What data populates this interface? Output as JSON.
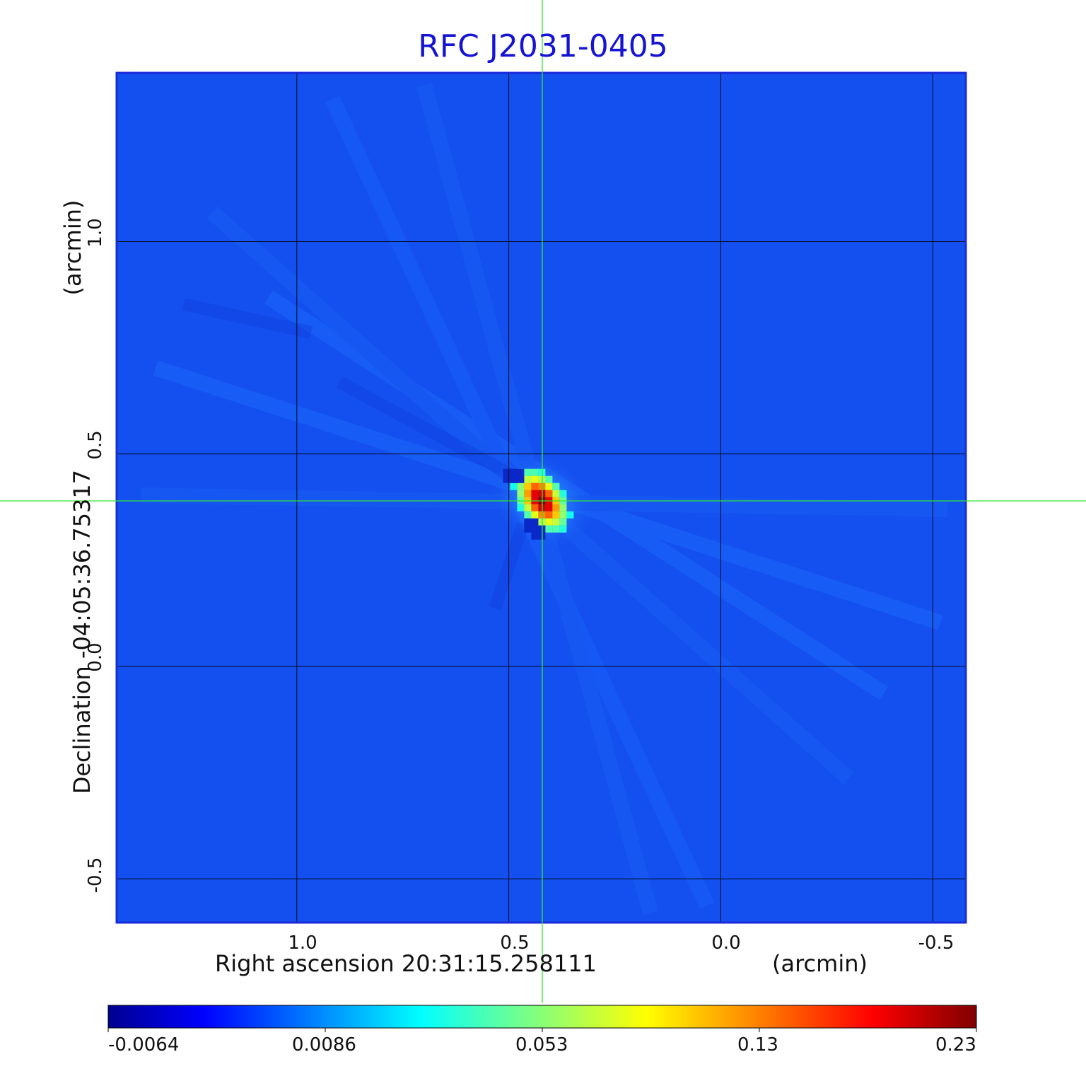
{
  "chart_data": {
    "type": "heatmap",
    "title": "RFC J2031-0405",
    "xlabel": "Right ascension  20:31:15.258111",
    "xlabel_unit": "(arcmin)",
    "ylabel": "Declination  -04:05:36.75317",
    "ylabel_unit": "(arcmin)",
    "x_ticks": [
      "1.0",
      "0.5",
      "0.0",
      "-0.5"
    ],
    "x_tick_values": [
      1.0,
      0.5,
      0.0,
      -0.5
    ],
    "y_ticks": [
      "1.0",
      "0.5",
      "0.0",
      "-0.5"
    ],
    "y_tick_values": [
      1.0,
      0.5,
      0.0,
      -0.5
    ],
    "xlim": [
      1.425,
      -0.578
    ],
    "ylim": [
      -0.603,
      1.397
    ],
    "crosshair": {
      "x": 0.422,
      "y": 0.388
    },
    "grid": true,
    "peak": {
      "x": 0.422,
      "y": 0.39,
      "value": 0.23
    },
    "colorbar": {
      "colormap": "jet",
      "tick_labels": [
        "-0.0064",
        "0.0086",
        "0.053",
        "0.13",
        "0.23"
      ],
      "tick_values": [
        -0.0064,
        0.0086,
        0.053,
        0.13,
        0.23
      ],
      "range": [
        -0.0064,
        0.23
      ]
    }
  },
  "colors": {
    "background_field": "#1450f0",
    "title": "#1414d2",
    "crosshair": "#32e632",
    "grid": "#000000"
  }
}
